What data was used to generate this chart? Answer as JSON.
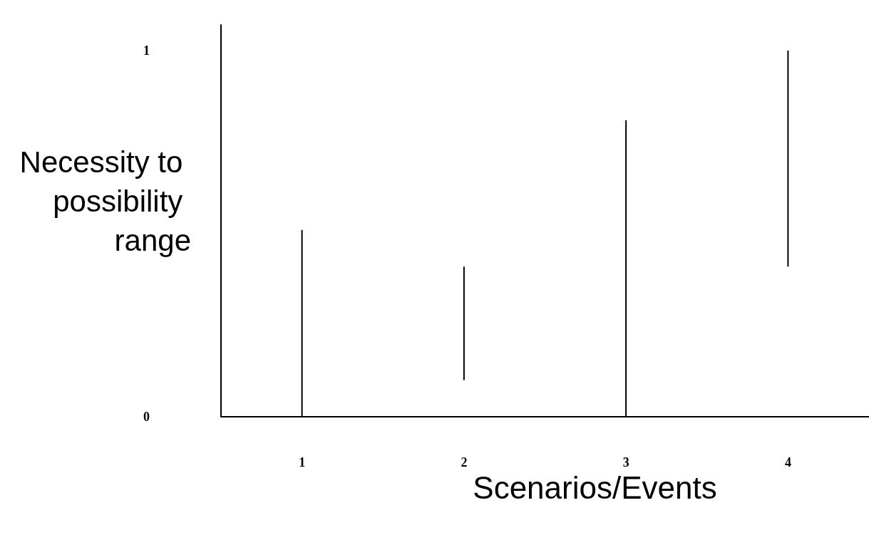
{
  "chart_data": {
    "type": "bar",
    "xlabel": "Scenarios/Events",
    "ylabel": "Necessity to possibility range",
    "categories": [
      "1",
      "2",
      "3",
      "4"
    ],
    "base": [
      0,
      0.1,
      0,
      0.41
    ],
    "values": [
      0.51,
      0.31,
      0.81,
      0.59
    ],
    "color": "#000000",
    "ylim": [
      0,
      1.07
    ],
    "yticks": [
      0,
      1
    ],
    "grid": false
  }
}
